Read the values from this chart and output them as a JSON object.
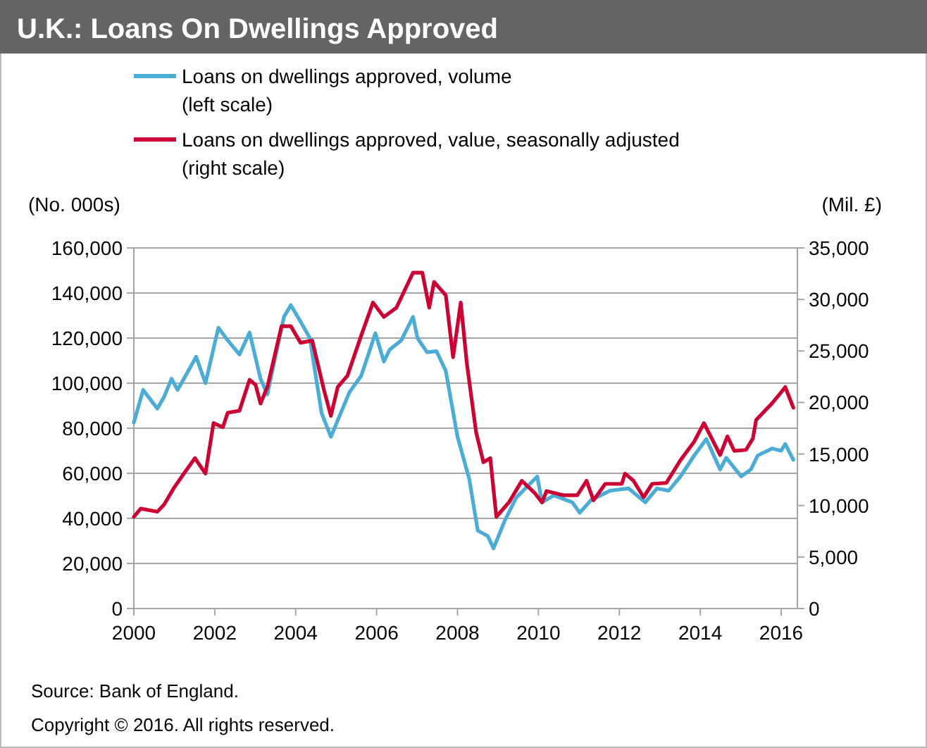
{
  "chart_data": {
    "type": "line",
    "title": "U.K.: Loans On Dwellings Approved",
    "ylabel": "(No. 000s)",
    "y2label": "(Mil. £)",
    "xlim": [
      2000,
      2016.4
    ],
    "xticks": [
      2000,
      2002,
      2004,
      2006,
      2008,
      2010,
      2012,
      2014,
      2016
    ],
    "ylim": [
      0,
      160000
    ],
    "yticks": [
      0,
      {
        "value": 20000,
        "label": "20,000"
      },
      {
        "value": 40000,
        "label": "40,000"
      },
      {
        "value": 60000,
        "label": "60,000"
      },
      {
        "value": 80000,
        "label": "80,000"
      },
      {
        "value": 100000,
        "label": "100,000"
      },
      {
        "value": 120000,
        "label": "120,000"
      },
      {
        "value": 140000,
        "label": "140,000"
      },
      {
        "value": 160000,
        "label": "160,000"
      }
    ],
    "y2lim": [
      0,
      35000
    ],
    "y2ticks": [
      0,
      {
        "value": 5000,
        "label": "5,000"
      },
      {
        "value": 10000,
        "label": "10,000"
      },
      {
        "value": 15000,
        "label": "15,000"
      },
      {
        "value": 20000,
        "label": "20,000"
      },
      {
        "value": 25000,
        "label": "25,000"
      },
      {
        "value": 30000,
        "label": "30,000"
      },
      {
        "value": 35000,
        "label": "35,000"
      }
    ],
    "grid": "y",
    "legend": "top",
    "marker": "none",
    "line_style": "solid",
    "annotations": [
      "Source: Bank of England.",
      "Copyright © 2016. All rights reserved."
    ],
    "series": [
      {
        "name": "Loans on dwellings approved, volume\n(left scale)",
        "color": "#4bacd6",
        "x": [
          2000,
          2000.23,
          2000.58,
          2000.75,
          2000.93,
          2001.08,
          2001.27,
          2001.54,
          2001.77,
          2002.09,
          2002.32,
          2002.61,
          2002.86,
          2003.13,
          2003.3,
          2003.71,
          2003.88,
          2004.12,
          2004.35,
          2004.64,
          2004.87,
          2004.99,
          2005.33,
          2005.62,
          2005.97,
          2006.18,
          2006.32,
          2006.61,
          2006.9,
          2007.01,
          2007.25,
          2007.48,
          2007.71,
          2008,
          2008.29,
          2008.5,
          2008.75,
          2008.89,
          2009.16,
          2009.45,
          2009.97,
          2010.09,
          2010.38,
          2010.84,
          2011.02,
          2011.3,
          2011.77,
          2012.23,
          2012.64,
          2012.93,
          2013.22,
          2013.51,
          2013.85,
          2014.15,
          2014.49,
          2014.64,
          2015.01,
          2015.25,
          2015.42,
          2015.77,
          2016,
          2016.1,
          2016.3
        ],
        "values": [
          82500,
          97000,
          88700,
          94000,
          102000,
          97000,
          103000,
          111700,
          100000,
          124600,
          119000,
          112700,
          122500,
          102000,
          95000,
          129400,
          134600,
          127300,
          120000,
          86700,
          76200,
          81400,
          96000,
          103300,
          122100,
          109600,
          114800,
          119000,
          129400,
          120000,
          113700,
          114200,
          105400,
          76200,
          57500,
          34600,
          32100,
          26700,
          38700,
          49200,
          58600,
          47100,
          50200,
          47100,
          42500,
          48100,
          52300,
          53300,
          47100,
          53300,
          52300,
          58600,
          67900,
          75200,
          61700,
          66900,
          58600,
          61700,
          67900,
          71000,
          70000,
          73000,
          66000
        ]
      },
      {
        "name": "Loans on dwellings approved, value, seasonally adjusted\n(right scale)",
        "color": "#cc0033",
        "axis": "y2",
        "x": [
          2000,
          2000.17,
          2000.58,
          2000.75,
          2000.99,
          2001.22,
          2001.51,
          2001.77,
          2001.97,
          2002.2,
          2002.32,
          2002.61,
          2002.86,
          2003.01,
          2003.13,
          2003.3,
          2003.65,
          2003.88,
          2004.12,
          2004.41,
          2004.7,
          2004.87,
          2005.04,
          2005.28,
          2005.62,
          2005.91,
          2006.18,
          2006.49,
          2006.9,
          2007.13,
          2007.3,
          2007.42,
          2007.71,
          2007.89,
          2008.08,
          2008.23,
          2008.46,
          2008.64,
          2008.81,
          2008.96,
          2009.27,
          2009.59,
          2009.91,
          2010.09,
          2010.2,
          2010.61,
          2010.96,
          2011.19,
          2011.36,
          2011.65,
          2012.06,
          2012.14,
          2012.35,
          2012.6,
          2012.81,
          2013.16,
          2013.51,
          2013.85,
          2014.09,
          2014.49,
          2014.67,
          2014.84,
          2015.13,
          2015.3,
          2015.38,
          2015.77,
          2016,
          2016.1,
          2016.3
        ],
        "values": [
          8900,
          9700,
          9400,
          10100,
          11700,
          13000,
          14600,
          13100,
          18000,
          17600,
          19000,
          19200,
          22200,
          21700,
          19900,
          21500,
          27400,
          27400,
          25800,
          26000,
          21200,
          18700,
          21500,
          22600,
          26500,
          29700,
          28300,
          29200,
          32600,
          32600,
          29200,
          31700,
          30400,
          24400,
          29700,
          23800,
          17100,
          14200,
          14600,
          8900,
          10300,
          12400,
          11200,
          10300,
          11400,
          11000,
          11000,
          12400,
          10500,
          12100,
          12100,
          13100,
          12400,
          10800,
          12100,
          12200,
          14400,
          16200,
          18000,
          14900,
          16700,
          15300,
          15400,
          16500,
          18300,
          19900,
          21000,
          21500,
          19500
        ]
      }
    ]
  }
}
